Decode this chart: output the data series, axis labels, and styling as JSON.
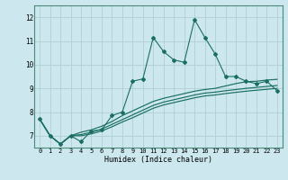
{
  "title": "",
  "xlabel": "Humidex (Indice chaleur)",
  "ylabel": "",
  "bg_color": "#cce8ee",
  "line_color": "#1a6e62",
  "grid_color": "#b0d0d4",
  "xlim": [
    -0.5,
    23.5
  ],
  "ylim": [
    6.5,
    12.5
  ],
  "xticks": [
    0,
    1,
    2,
    3,
    4,
    5,
    6,
    7,
    8,
    9,
    10,
    11,
    12,
    13,
    14,
    15,
    16,
    17,
    18,
    19,
    20,
    21,
    22,
    23
  ],
  "yticks": [
    7,
    8,
    9,
    10,
    11,
    12
  ],
  "series1_x": [
    0,
    1,
    2,
    3,
    4,
    5,
    6,
    7,
    8,
    9,
    10,
    11,
    12,
    13,
    14,
    15,
    16,
    17,
    18,
    19,
    20,
    21,
    22,
    23
  ],
  "series1_y": [
    7.7,
    7.0,
    6.65,
    7.0,
    6.75,
    7.2,
    7.25,
    7.85,
    8.0,
    9.3,
    9.4,
    11.15,
    10.55,
    10.2,
    10.1,
    11.9,
    11.15,
    10.45,
    9.5,
    9.5,
    9.3,
    9.2,
    9.3,
    8.9
  ],
  "series2_x": [
    0,
    1,
    2,
    3,
    4,
    5,
    6,
    7,
    8,
    9,
    10,
    11,
    12,
    13,
    14,
    15,
    16,
    17,
    18,
    19,
    20,
    21,
    22,
    23
  ],
  "series2_y": [
    7.7,
    7.0,
    6.65,
    7.0,
    7.15,
    7.25,
    7.4,
    7.6,
    7.85,
    8.05,
    8.25,
    8.45,
    8.58,
    8.68,
    8.78,
    8.88,
    8.95,
    9.0,
    9.1,
    9.2,
    9.28,
    9.3,
    9.35,
    9.38
  ],
  "series3_x": [
    0,
    1,
    2,
    3,
    4,
    5,
    6,
    7,
    8,
    9,
    10,
    11,
    12,
    13,
    14,
    15,
    16,
    17,
    18,
    19,
    20,
    21,
    22,
    23
  ],
  "series3_y": [
    7.7,
    7.0,
    6.65,
    7.0,
    7.05,
    7.15,
    7.28,
    7.48,
    7.68,
    7.88,
    8.08,
    8.28,
    8.42,
    8.52,
    8.62,
    8.72,
    8.8,
    8.84,
    8.9,
    8.95,
    9.0,
    9.04,
    9.08,
    9.12
  ],
  "series4_x": [
    0,
    1,
    2,
    3,
    4,
    5,
    6,
    7,
    8,
    9,
    10,
    11,
    12,
    13,
    14,
    15,
    16,
    17,
    18,
    19,
    20,
    21,
    22,
    23
  ],
  "series4_y": [
    7.7,
    7.0,
    6.65,
    7.0,
    7.0,
    7.08,
    7.2,
    7.38,
    7.58,
    7.76,
    7.96,
    8.16,
    8.3,
    8.4,
    8.5,
    8.6,
    8.68,
    8.72,
    8.78,
    8.83,
    8.88,
    8.92,
    8.96,
    9.0
  ]
}
